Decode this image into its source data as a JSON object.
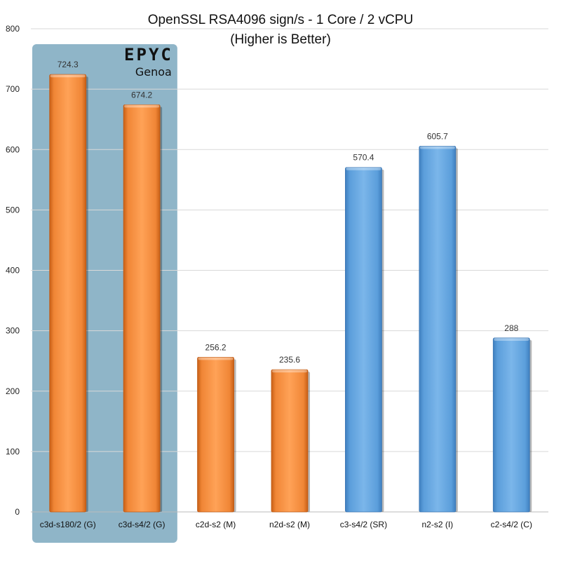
{
  "chart_data": {
    "type": "bar",
    "title": "OpenSSL  RSA4096 sign/s - 1 Core / 2 vCPU",
    "subtitle": "(Higher is Better)",
    "xlabel": "",
    "ylabel": "",
    "ylim": [
      0,
      800
    ],
    "yticks": [
      0,
      100,
      200,
      300,
      400,
      500,
      600,
      700,
      800
    ],
    "grid": true,
    "legend": "none",
    "categories": [
      "c3d-s180/2 (G)",
      "c3d-s4/2 (G)",
      "c2d-s2 (M)",
      "n2d-s2 (M)",
      "c3-s4/2 (SR)",
      "n2-s2 (I)",
      "c2-s4/2 (C)"
    ],
    "values": [
      724.3,
      674.2,
      256.2,
      235.6,
      570.4,
      605.7,
      288
    ],
    "value_labels": [
      "724.3",
      "674.2",
      "256.2",
      "235.6",
      "570.4",
      "605.7",
      "288"
    ],
    "bar_colors": [
      "#f5893a",
      "#f5893a",
      "#f5893a",
      "#f5893a",
      "#64a5e0",
      "#64a5e0",
      "#64a5e0"
    ],
    "highlight": {
      "categories": [
        "c3d-s180/2 (G)",
        "c3d-s4/2 (G)"
      ],
      "color": "#8fb5c8",
      "logo_text": "EPYC",
      "logo_subtext": "Genoa"
    }
  }
}
